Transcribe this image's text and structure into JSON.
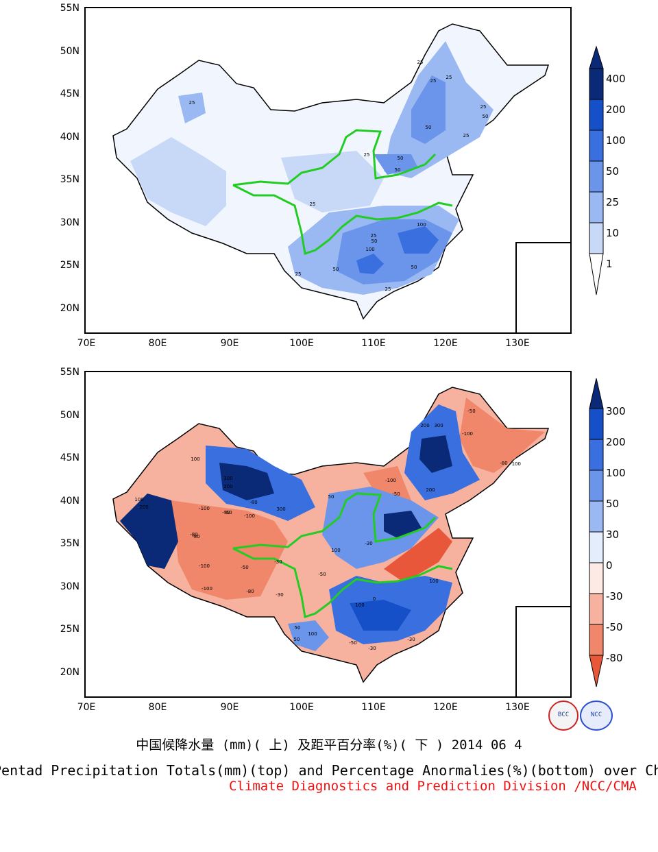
{
  "top_panel": {
    "lat_labels": [
      "55N",
      "50N",
      "45N",
      "40N",
      "35N",
      "30N",
      "25N",
      "20N"
    ],
    "lon_labels": [
      "70E",
      "80E",
      "90E",
      "100E",
      "110E",
      "120E",
      "130E"
    ],
    "colorbar_labels": [
      "400",
      "200",
      "100",
      "50",
      "25",
      "10",
      "1"
    ],
    "colorbar_colors": [
      "#0a2a78",
      "#1650c8",
      "#3a6fe0",
      "#6b95ea",
      "#9ab8f2",
      "#c8d9f7",
      "#ffffff"
    ],
    "contour_labels": [
      "25",
      "25",
      "25",
      "25",
      "50",
      "50",
      "25",
      "50",
      "50",
      "100",
      "100",
      "50",
      "25",
      "25",
      "25",
      "50",
      "25",
      "25",
      "50",
      "25"
    ]
  },
  "bottom_panel": {
    "lat_labels": [
      "55N",
      "50N",
      "45N",
      "40N",
      "35N",
      "30N",
      "25N",
      "20N"
    ],
    "lon_labels": [
      "70E",
      "80E",
      "90E",
      "100E",
      "110E",
      "120E",
      "130E"
    ],
    "colorbar_labels": [
      "300",
      "200",
      "100",
      "50",
      "30",
      "0",
      "-30",
      "-50",
      "-80"
    ],
    "colorbar_colors": [
      "#0a2a78",
      "#1650c8",
      "#3a6fe0",
      "#6b95ea",
      "#9ab8f2",
      "#e4edfb",
      "#fdeae4",
      "#f6b29e",
      "#f0866a",
      "#e8573a"
    ],
    "contour_labels": [
      "200",
      "300",
      "-100",
      "-50",
      "-100",
      "-80",
      "100",
      "300",
      "200",
      "100",
      "200",
      "-100",
      "-50",
      "-100",
      "-80",
      "-100",
      "-50",
      "300",
      "200",
      "-80",
      "100",
      "50",
      "-50",
      "-100",
      "-30",
      "-80",
      "-50",
      "-100",
      "-50",
      "100",
      "-80",
      "-30",
      "50",
      "100",
      "-50",
      "-30",
      "100",
      "50",
      "-30",
      "0",
      "-30"
    ]
  },
  "logos": [
    "BCC",
    "NCC"
  ],
  "captions": {
    "line1": "中国候降水量 (mm)( 上) 及距平百分率(%)( 下 ) 2014 06 4",
    "line2": "Pentad Precipitation Totals(mm)(top) and Percentage Anormalies(%)(bottom) over China",
    "line3": "Climate Diagnostics and Prediction Division /NCC/CMA"
  }
}
